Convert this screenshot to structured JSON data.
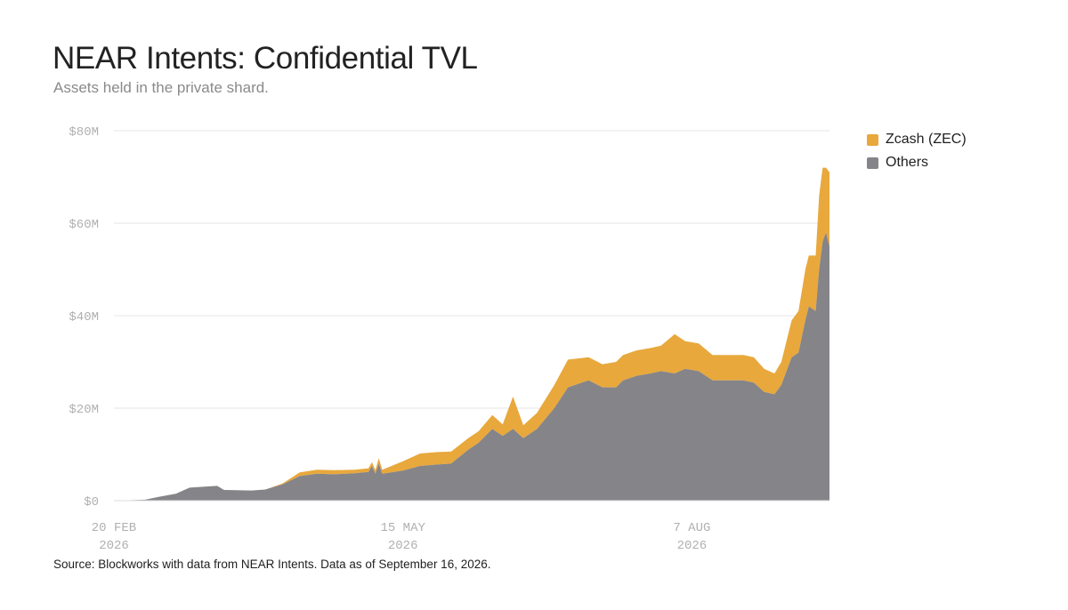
{
  "title": "NEAR Intents: Confidential TVL",
  "subtitle": "Assets held in the private shard.",
  "source": "Source: Blockworks with data from NEAR Intents. Data as of September 16, 2026.",
  "colors": {
    "zec": "#E8A83C",
    "others": "#858488",
    "grid": "#e6e6e6",
    "tick": "#b0b0b0"
  },
  "chart_data": {
    "type": "area",
    "stacked": true,
    "title": "NEAR Intents: Confidential TVL",
    "subtitle": "Assets held in the private shard.",
    "xlabel": "",
    "ylabel": "",
    "x_range": [
      "2026-02-20",
      "2026-09-16"
    ],
    "ylim": [
      0,
      80000000
    ],
    "y_ticks": [
      {
        "value": 0,
        "label": "$0"
      },
      {
        "value": 20000000,
        "label": "$20M"
      },
      {
        "value": 40000000,
        "label": "$40M"
      },
      {
        "value": 60000000,
        "label": "$60M"
      },
      {
        "value": 80000000,
        "label": "$80M"
      }
    ],
    "x_ticks": [
      {
        "date": "2026-02-20",
        "label1": "20 FEB",
        "label2": "2026"
      },
      {
        "date": "2026-05-15",
        "label1": "15 MAY",
        "label2": "2026"
      },
      {
        "date": "2026-08-07",
        "label1": "7 AUG",
        "label2": "2026"
      }
    ],
    "grid": true,
    "legend_position": "top-right",
    "series": [
      {
        "name": "Others",
        "color": "#858488",
        "points": [
          [
            "2026-02-20",
            0
          ],
          [
            "2026-03-01",
            200000
          ],
          [
            "2026-03-05",
            800000
          ],
          [
            "2026-03-10",
            1500000
          ],
          [
            "2026-03-14",
            2800000
          ],
          [
            "2026-03-18",
            3000000
          ],
          [
            "2026-03-22",
            3200000
          ],
          [
            "2026-03-24",
            2300000
          ],
          [
            "2026-04-01",
            2200000
          ],
          [
            "2026-04-05",
            2400000
          ],
          [
            "2026-04-10",
            3500000
          ],
          [
            "2026-04-15",
            5300000
          ],
          [
            "2026-04-20",
            5800000
          ],
          [
            "2026-04-25",
            5700000
          ],
          [
            "2026-05-01",
            5900000
          ],
          [
            "2026-05-05",
            6200000
          ],
          [
            "2026-05-06",
            7500000
          ],
          [
            "2026-05-07",
            5800000
          ],
          [
            "2026-05-08",
            8000000
          ],
          [
            "2026-05-09",
            5800000
          ],
          [
            "2026-05-15",
            6500000
          ],
          [
            "2026-05-20",
            7500000
          ],
          [
            "2026-05-25",
            7800000
          ],
          [
            "2026-05-29",
            8000000
          ],
          [
            "2026-06-03",
            11000000
          ],
          [
            "2026-06-06",
            12500000
          ],
          [
            "2026-06-10",
            15500000
          ],
          [
            "2026-06-13",
            14000000
          ],
          [
            "2026-06-16",
            15500000
          ],
          [
            "2026-06-19",
            13500000
          ],
          [
            "2026-06-23",
            15500000
          ],
          [
            "2026-06-28",
            20000000
          ],
          [
            "2026-07-02",
            24500000
          ],
          [
            "2026-07-08",
            26000000
          ],
          [
            "2026-07-12",
            24500000
          ],
          [
            "2026-07-16",
            24500000
          ],
          [
            "2026-07-18",
            26000000
          ],
          [
            "2026-07-22",
            27000000
          ],
          [
            "2026-07-26",
            27500000
          ],
          [
            "2026-07-29",
            28000000
          ],
          [
            "2026-08-02",
            27500000
          ],
          [
            "2026-08-05",
            28500000
          ],
          [
            "2026-08-09",
            28000000
          ],
          [
            "2026-08-13",
            26000000
          ],
          [
            "2026-08-17",
            26000000
          ],
          [
            "2026-08-22",
            26000000
          ],
          [
            "2026-08-25",
            25500000
          ],
          [
            "2026-08-28",
            23500000
          ],
          [
            "2026-08-31",
            23000000
          ],
          [
            "2026-09-02",
            25000000
          ],
          [
            "2026-09-05",
            31000000
          ],
          [
            "2026-09-07",
            32000000
          ],
          [
            "2026-09-09",
            39000000
          ],
          [
            "2026-09-10",
            42000000
          ],
          [
            "2026-09-12",
            41000000
          ],
          [
            "2026-09-13",
            50000000
          ],
          [
            "2026-09-14",
            56000000
          ],
          [
            "2026-09-15",
            58000000
          ],
          [
            "2026-09-16",
            55000000
          ]
        ]
      },
      {
        "name": "Zcash (ZEC)",
        "color": "#E8A83C",
        "points": [
          [
            "2026-02-20",
            0
          ],
          [
            "2026-03-01",
            0
          ],
          [
            "2026-03-05",
            0
          ],
          [
            "2026-03-10",
            0
          ],
          [
            "2026-03-14",
            0
          ],
          [
            "2026-03-18",
            0
          ],
          [
            "2026-03-22",
            0
          ],
          [
            "2026-03-24",
            0
          ],
          [
            "2026-04-01",
            0
          ],
          [
            "2026-04-05",
            0
          ],
          [
            "2026-04-10",
            200000
          ],
          [
            "2026-04-15",
            800000
          ],
          [
            "2026-04-20",
            900000
          ],
          [
            "2026-04-25",
            900000
          ],
          [
            "2026-05-01",
            800000
          ],
          [
            "2026-05-05",
            800000
          ],
          [
            "2026-05-06",
            800000
          ],
          [
            "2026-05-07",
            800000
          ],
          [
            "2026-05-08",
            1200000
          ],
          [
            "2026-05-09",
            900000
          ],
          [
            "2026-05-15",
            2000000
          ],
          [
            "2026-05-20",
            2700000
          ],
          [
            "2026-05-25",
            2700000
          ],
          [
            "2026-05-29",
            2600000
          ],
          [
            "2026-06-03",
            2500000
          ],
          [
            "2026-06-06",
            2500000
          ],
          [
            "2026-06-10",
            3000000
          ],
          [
            "2026-06-13",
            2500000
          ],
          [
            "2026-06-16",
            7000000
          ],
          [
            "2026-06-19",
            2800000
          ],
          [
            "2026-06-23",
            3500000
          ],
          [
            "2026-06-28",
            5000000
          ],
          [
            "2026-07-02",
            6000000
          ],
          [
            "2026-07-08",
            5000000
          ],
          [
            "2026-07-12",
            5000000
          ],
          [
            "2026-07-16",
            5500000
          ],
          [
            "2026-07-18",
            5500000
          ],
          [
            "2026-07-22",
            5500000
          ],
          [
            "2026-07-26",
            5500000
          ],
          [
            "2026-07-29",
            5500000
          ],
          [
            "2026-08-02",
            8500000
          ],
          [
            "2026-08-05",
            6000000
          ],
          [
            "2026-08-09",
            6000000
          ],
          [
            "2026-08-13",
            5500000
          ],
          [
            "2026-08-17",
            5500000
          ],
          [
            "2026-08-22",
            5500000
          ],
          [
            "2026-08-25",
            5500000
          ],
          [
            "2026-08-28",
            5000000
          ],
          [
            "2026-08-31",
            4500000
          ],
          [
            "2026-09-02",
            5000000
          ],
          [
            "2026-09-05",
            8000000
          ],
          [
            "2026-09-07",
            9000000
          ],
          [
            "2026-09-09",
            11000000
          ],
          [
            "2026-09-10",
            11000000
          ],
          [
            "2026-09-12",
            12000000
          ],
          [
            "2026-09-13",
            16000000
          ],
          [
            "2026-09-14",
            16000000
          ],
          [
            "2026-09-15",
            14000000
          ],
          [
            "2026-09-16",
            16000000
          ]
        ]
      }
    ]
  }
}
